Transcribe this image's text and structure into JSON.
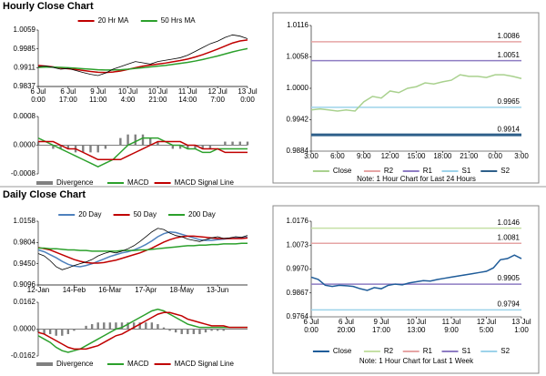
{
  "sections": [
    "Hourly Close Chart",
    "Daily Close Chart"
  ],
  "chart_data": [
    {
      "type": "line",
      "categories": [
        [
          "6 Jul",
          "0:00"
        ],
        null,
        null,
        null,
        [
          "6 Jul",
          "17:00"
        ],
        null,
        null,
        null,
        [
          "9 Jul",
          "11:00"
        ],
        null,
        null,
        null,
        [
          "10 Jul",
          "4:00"
        ],
        null,
        null,
        null,
        [
          "10 Jul",
          "21:00"
        ],
        null,
        null,
        null,
        [
          "11 Jul",
          "14:00"
        ],
        null,
        null,
        null,
        [
          "12 Jul",
          "7:00"
        ],
        null,
        null,
        null,
        [
          "13 Jul",
          "0:00"
        ]
      ],
      "values": [
        0.9915,
        0.9918,
        0.9912,
        0.9905,
        0.9908,
        0.99,
        0.9892,
        0.9885,
        0.988,
        0.989,
        0.9905,
        0.9915,
        0.9925,
        0.9935,
        0.993,
        0.9925,
        0.9935,
        0.994,
        0.9945,
        0.995,
        0.996,
        0.9975,
        0.999,
        1.0005,
        1.0015,
        1.003,
        1.004,
        1.0035,
        1.0025
      ],
      "color": "#000000",
      "series": [
        {
          "name": "20 Hr MA",
          "color": "#c00000",
          "values": [
            0.992,
            0.9917,
            0.9914,
            0.991,
            0.9907,
            0.9904,
            0.99,
            0.9896,
            0.9893,
            0.9892,
            0.9894,
            0.9898,
            0.9904,
            0.9911,
            0.9917,
            0.9921,
            0.9925,
            0.9929,
            0.9934,
            0.9939,
            0.9945,
            0.9953,
            0.9962,
            0.9973,
            0.9984,
            0.9996,
            1.0008,
            1.0016,
            1.002
          ]
        },
        {
          "name": "50 Hrs MA",
          "color": "#2ca02c",
          "values": [
            0.9912,
            0.9913,
            0.9913,
            0.9912,
            0.9911,
            0.9909,
            0.9907,
            0.9905,
            0.9903,
            0.9902,
            0.9902,
            0.9903,
            0.9905,
            0.9908,
            0.9911,
            0.9914,
            0.9917,
            0.992,
            0.9924,
            0.9928,
            0.9932,
            0.9937,
            0.9943,
            0.995,
            0.9957,
            0.9965,
            0.9973,
            0.998,
            0.9986
          ]
        }
      ],
      "ylim": [
        0.9837,
        1.0059
      ],
      "yticks": [
        0.9837,
        0.9911,
        0.9985,
        1.0059
      ]
    },
    {
      "type": "combo",
      "series": [
        {
          "name": "Divergence",
          "color": "#808080",
          "style": "bar",
          "values": [
            0.0001,
            0,
            -0.0001,
            -0.0001,
            -0.0001,
            -0.0002,
            -0.0002,
            -0.0002,
            -0.0002,
            -0.0001,
            0,
            0.0002,
            0.0003,
            0.0003,
            0.0003,
            0.0002,
            0.0001,
            0,
            -0.0001,
            -0.0001,
            -0.0001,
            -0.0001,
            -0.0001,
            -0.0001,
            0,
            0.0001,
            0.0001,
            0.0001,
            0.0001
          ]
        },
        {
          "name": "MACD",
          "color": "#2ca02c",
          "values": [
            0.0002,
            0.0001,
            0,
            -0.0001,
            -0.0002,
            -0.0003,
            -0.0004,
            -0.0005,
            -0.0006,
            -0.0005,
            -0.0004,
            -0.0002,
            0,
            0.0001,
            0.0002,
            0.0002,
            0.0002,
            0.0001,
            0,
            0,
            -0.0001,
            -0.0001,
            -0.0002,
            -0.0002,
            -0.0001,
            -0.0001,
            -0.0001,
            -0.0001,
            -0.0001
          ]
        },
        {
          "name": "MACD Signal Line",
          "color": "#c00000",
          "values": [
            0.0001,
            0.0001,
            0.0001,
            0,
            -0.0001,
            -0.0001,
            -0.0002,
            -0.0003,
            -0.0004,
            -0.0004,
            -0.0004,
            -0.0004,
            -0.0003,
            -0.0002,
            -0.0001,
            0,
            0.0001,
            0.0001,
            0.0001,
            0.0001,
            0,
            0,
            -0.0001,
            -0.0001,
            -0.0001,
            -0.0002,
            -0.0002,
            -0.0002,
            -0.0002
          ]
        }
      ],
      "ylim": [
        -0.0008,
        0.0008
      ],
      "yticks": [
        -0.0008,
        {
          "value": 0,
          "label": "0.0000"
        },
        0.0008
      ]
    },
    {
      "type": "line",
      "categories": [
        "3:00",
        null,
        null,
        "6:00",
        null,
        null,
        "9:00",
        null,
        null,
        "12:00",
        null,
        null,
        "15:00",
        null,
        null,
        "18:00",
        null,
        null,
        "21:00",
        null,
        null,
        "0:00",
        null,
        null,
        "3:00"
      ],
      "series": [
        {
          "name": "Close",
          "color": "#a9d18e",
          "values": [
            0.996,
            0.9962,
            0.996,
            0.9958,
            0.996,
            0.9958,
            0.9975,
            0.9985,
            0.9982,
            0.9995,
            0.9992,
            1.0,
            1.0003,
            1.001,
            1.0008,
            1.0012,
            1.0015,
            1.0025,
            1.0022,
            1.0022,
            1.002,
            1.0025,
            1.0025,
            1.0022,
            1.0018
          ]
        }
      ],
      "levels": [
        {
          "name": "R2",
          "value": 1.0086,
          "color": "#e6a5a5"
        },
        {
          "name": "R1",
          "value": 1.0051,
          "color": "#8e7cc3"
        },
        {
          "name": "S1",
          "value": 0.9965,
          "color": "#9dd3ea"
        },
        {
          "name": "S2",
          "value": 0.9914,
          "color": "#2e5f8a"
        }
      ],
      "ylim": [
        0.9884,
        1.0116
      ],
      "yticks": [
        0.9884,
        0.9942,
        {
          "value": 1,
          "label": "1.0000"
        },
        1.0058,
        1.0116
      ],
      "note": "Note: 1 Hour Chart for Last 24 Hours"
    },
    {
      "type": "line",
      "categories": [
        "12-Jan",
        null,
        null,
        null,
        null,
        null,
        "14-Feb",
        null,
        null,
        null,
        null,
        null,
        "16-Mar",
        null,
        null,
        null,
        null,
        null,
        "17-Apr",
        null,
        null,
        null,
        null,
        null,
        "18-May",
        null,
        null,
        null,
        null,
        null,
        "13-Jun",
        null,
        null,
        null,
        null,
        null
      ],
      "values": [
        0.962,
        0.958,
        0.95,
        0.94,
        0.935,
        0.938,
        0.942,
        0.945,
        0.948,
        0.952,
        0.958,
        0.962,
        0.965,
        0.963,
        0.966,
        0.97,
        0.975,
        0.982,
        0.99,
        0.998,
        1.004,
        1.002,
        0.996,
        0.992,
        0.99,
        0.986,
        0.984,
        0.982,
        0.985,
        0.988,
        0.99,
        0.987,
        0.988,
        0.99,
        0.989,
        0.992
      ],
      "color": "#000000",
      "series": [
        {
          "name": "20 Day",
          "color": "#4f81bd",
          "values": [
            0.968,
            0.965,
            0.96,
            0.955,
            0.949,
            0.944,
            0.941,
            0.94,
            0.942,
            0.945,
            0.949,
            0.953,
            0.957,
            0.96,
            0.963,
            0.965,
            0.968,
            0.972,
            0.977,
            0.983,
            0.99,
            0.995,
            0.998,
            0.997,
            0.994,
            0.991,
            0.988,
            0.985,
            0.984,
            0.984,
            0.985,
            0.986,
            0.987,
            0.988,
            0.988,
            0.989
          ]
        },
        {
          "name": "50 Day",
          "color": "#c00000",
          "values": [
            0.972,
            0.97,
            0.968,
            0.964,
            0.96,
            0.956,
            0.952,
            0.949,
            0.947,
            0.946,
            0.946,
            0.947,
            0.949,
            0.951,
            0.954,
            0.957,
            0.96,
            0.963,
            0.967,
            0.971,
            0.976,
            0.981,
            0.985,
            0.988,
            0.99,
            0.991,
            0.991,
            0.99,
            0.989,
            0.988,
            0.987,
            0.987,
            0.987,
            0.987,
            0.987,
            0.988
          ]
        },
        {
          "name": "200 Day",
          "color": "#2ca02c",
          "values": [
            0.971,
            0.971,
            0.97,
            0.97,
            0.969,
            0.968,
            0.968,
            0.967,
            0.967,
            0.966,
            0.966,
            0.966,
            0.966,
            0.966,
            0.967,
            0.967,
            0.967,
            0.968,
            0.968,
            0.969,
            0.97,
            0.971,
            0.972,
            0.973,
            0.974,
            0.975,
            0.975,
            0.976,
            0.976,
            0.977,
            0.977,
            0.978,
            0.978,
            0.978,
            0.979,
            0.979
          ]
        }
      ],
      "ylim": [
        0.9096,
        1.0158
      ],
      "yticks": [
        0.9096,
        {
          "value": 0.945,
          "label": "0.9450"
        },
        0.9804,
        1.0158
      ]
    },
    {
      "type": "combo",
      "series": [
        {
          "name": "Divergence",
          "color": "#808080",
          "style": "bar",
          "values": [
            -0.002,
            -0.003,
            -0.003,
            -0.004,
            -0.004,
            -0.003,
            -0.001,
            0,
            0.002,
            0.003,
            0.004,
            0.004,
            0.004,
            0.004,
            0.004,
            0.004,
            0.004,
            0.004,
            0.004,
            0.004,
            0.003,
            0.001,
            -0.001,
            -0.002,
            -0.003,
            -0.003,
            -0.003,
            -0.003,
            -0.002,
            -0.001,
            -0.001,
            -0.001,
            0,
            0,
            0,
            0
          ]
        },
        {
          "name": "MACD",
          "color": "#2ca02c",
          "values": [
            -0.004,
            -0.006,
            -0.008,
            -0.011,
            -0.013,
            -0.014,
            -0.013,
            -0.012,
            -0.01,
            -0.008,
            -0.006,
            -0.004,
            -0.002,
            0,
            0.001,
            0.003,
            0.005,
            0.007,
            0.009,
            0.011,
            0.012,
            0.011,
            0.009,
            0.007,
            0.005,
            0.003,
            0.002,
            0.001,
            0.001,
            0.001,
            0.001,
            0.001,
            0.001,
            0.001,
            0.001,
            0.001
          ]
        },
        {
          "name": "MACD Signal Line",
          "color": "#c00000",
          "values": [
            -0.002,
            -0.003,
            -0.005,
            -0.007,
            -0.009,
            -0.011,
            -0.012,
            -0.012,
            -0.012,
            -0.011,
            -0.01,
            -0.008,
            -0.006,
            -0.004,
            -0.003,
            -0.001,
            0.001,
            0.003,
            0.005,
            0.007,
            0.009,
            0.01,
            0.01,
            0.009,
            0.008,
            0.006,
            0.005,
            0.004,
            0.003,
            0.002,
            0.002,
            0.002,
            0.001,
            0.001,
            0.001,
            0.001
          ]
        }
      ],
      "ylim": [
        -0.0162,
        0.0162
      ],
      "yticks": [
        -0.0162,
        {
          "value": 0,
          "label": "0.0000"
        },
        0.0162
      ]
    },
    {
      "type": "line",
      "categories": [
        [
          "6 Jul",
          "0:00"
        ],
        null,
        null,
        null,
        null,
        [
          "6 Jul",
          "20:00"
        ],
        null,
        null,
        null,
        null,
        [
          "9 Jul",
          "17:00"
        ],
        null,
        null,
        null,
        null,
        [
          "10 Jul",
          "13:00"
        ],
        null,
        null,
        null,
        null,
        [
          "11 Jul",
          "9:00"
        ],
        null,
        null,
        null,
        null,
        [
          "12 Jul",
          "5:00"
        ],
        null,
        null,
        null,
        null,
        [
          "13 Jul",
          "1:00"
        ]
      ],
      "series": [
        {
          "name": "Close",
          "color": "#1f5c99",
          "values": [
            0.9935,
            0.9925,
            0.99,
            0.9895,
            0.99,
            0.9898,
            0.9895,
            0.9885,
            0.9878,
            0.989,
            0.9885,
            0.99,
            0.9905,
            0.9902,
            0.991,
            0.9915,
            0.992,
            0.9918,
            0.9925,
            0.993,
            0.9935,
            0.994,
            0.9945,
            0.995,
            0.9955,
            0.996,
            0.9975,
            1.001,
            1.0015,
            1.003,
            1.0015
          ]
        }
      ],
      "levels": [
        {
          "name": "R2",
          "value": 1.0146,
          "color": "#c5e0a5"
        },
        {
          "name": "R1",
          "value": 1.0081,
          "color": "#e6a5a5"
        },
        {
          "name": "S1",
          "value": 0.9905,
          "color": "#8e7cc3"
        },
        {
          "name": "S2",
          "value": 0.9794,
          "color": "#9dd3ea"
        }
      ],
      "ylim": [
        0.9764,
        1.0176
      ],
      "yticks": [
        0.9764,
        0.9867,
        {
          "value": 0.997,
          "label": "0.9970"
        },
        1.0073,
        1.0176
      ],
      "note": "Note: 1 Hour Chart for Last 1 Week"
    }
  ]
}
